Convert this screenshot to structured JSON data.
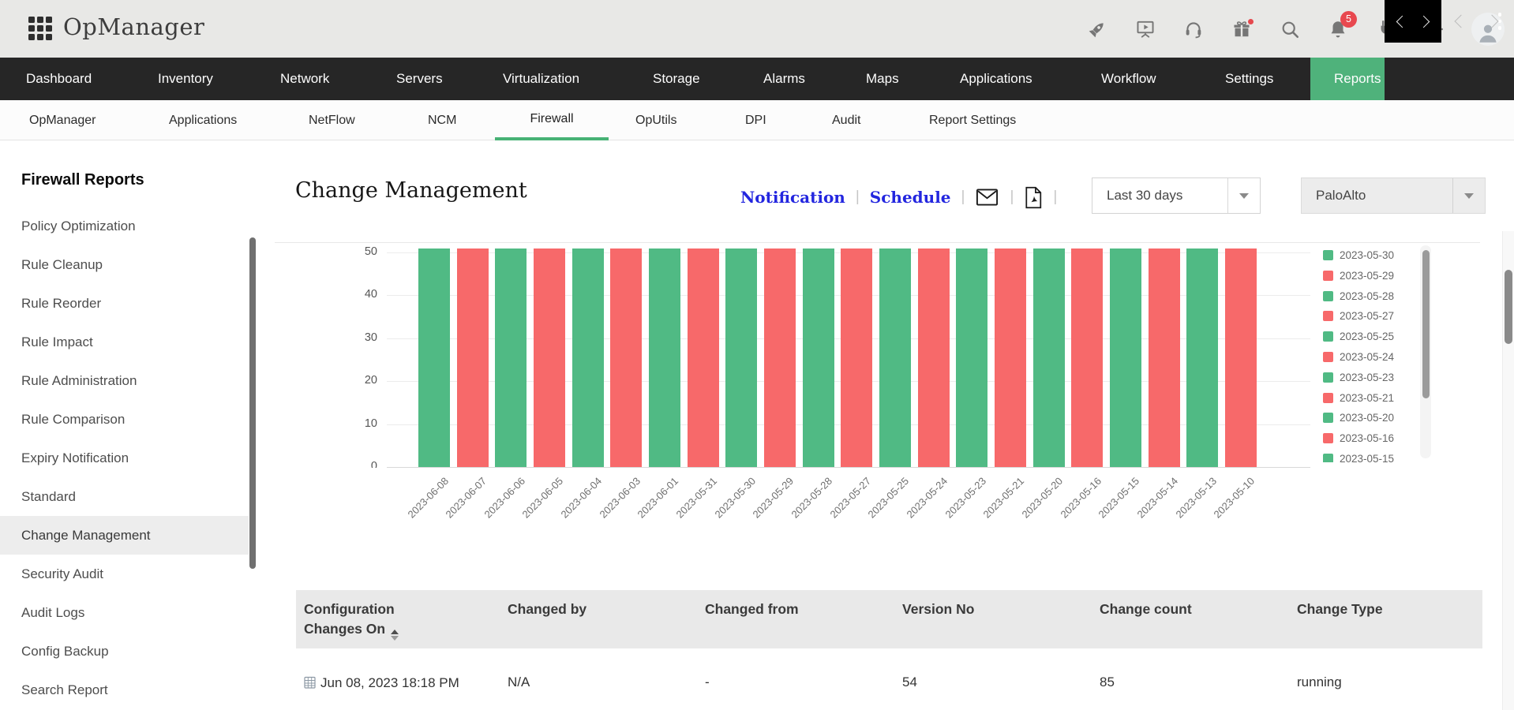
{
  "header": {
    "app_title": "OpManager",
    "notification_count": "5",
    "icons": [
      "apps-grid",
      "rocket",
      "training-video",
      "support-headset",
      "gift",
      "search",
      "notification-bell",
      "plugin",
      "settings-gear",
      "user-avatar"
    ]
  },
  "primary_nav": {
    "items": [
      {
        "label": "Dashboard"
      },
      {
        "label": "Inventory"
      },
      {
        "label": "Network"
      },
      {
        "label": "Servers"
      },
      {
        "label": "Virtualization"
      },
      {
        "label": "Storage"
      },
      {
        "label": "Alarms"
      },
      {
        "label": "Maps"
      },
      {
        "label": "Applications"
      },
      {
        "label": "Workflow"
      },
      {
        "label": "Settings"
      },
      {
        "label": "Reports",
        "active": true
      }
    ]
  },
  "secondary_nav": {
    "items": [
      {
        "label": "OpManager"
      },
      {
        "label": "Applications"
      },
      {
        "label": "NetFlow"
      },
      {
        "label": "NCM"
      },
      {
        "label": "Firewall",
        "active": true
      },
      {
        "label": "OpUtils"
      },
      {
        "label": "DPI"
      },
      {
        "label": "Audit"
      },
      {
        "label": "Report Settings"
      }
    ]
  },
  "sidebar": {
    "title": "Firewall Reports",
    "items": [
      {
        "label": "Policy Optimization"
      },
      {
        "label": "Rule Cleanup"
      },
      {
        "label": "Rule Reorder"
      },
      {
        "label": "Rule Impact"
      },
      {
        "label": "Rule Administration"
      },
      {
        "label": "Rule Comparison"
      },
      {
        "label": "Expiry Notification"
      },
      {
        "label": "Standard"
      },
      {
        "label": "Change Management",
        "active": true
      },
      {
        "label": "Security Audit"
      },
      {
        "label": "Audit Logs"
      },
      {
        "label": "Config Backup"
      },
      {
        "label": "Search Report"
      }
    ]
  },
  "report": {
    "title": "Change Management",
    "notification_label": "Notification",
    "schedule_label": "Schedule",
    "time_range": "Last 30 days",
    "device": "PaloAlto"
  },
  "chart_data": {
    "type": "bar",
    "title": "",
    "xlabel": "",
    "ylabel": "",
    "ylim": [
      0,
      50
    ],
    "yticks": [
      0,
      10,
      20,
      30,
      40,
      50
    ],
    "grid": true,
    "legend_position": "right",
    "clipped_at_top": true,
    "note": "All 22 bars are equal height and extend above the visible y-axis maximum (~50); tops are clipped by the viewport.",
    "palette": {
      "green": "#50ba84",
      "red": "#f7696a"
    },
    "categories": [
      "2023-06-08",
      "2023-06-07",
      "2023-06-06",
      "2023-06-05",
      "2023-06-04",
      "2023-06-03",
      "2023-06-01",
      "2023-05-31",
      "2023-05-30",
      "2023-05-29",
      "2023-05-28",
      "2023-05-27",
      "2023-05-25",
      "2023-05-24",
      "2023-05-23",
      "2023-05-21",
      "2023-05-20",
      "2023-05-16",
      "2023-05-15",
      "2023-05-14",
      "2023-05-13",
      "2023-05-10"
    ],
    "values": [
      50,
      50,
      50,
      50,
      50,
      50,
      50,
      50,
      50,
      50,
      50,
      50,
      50,
      50,
      50,
      50,
      50,
      50,
      50,
      50,
      50,
      50
    ],
    "color_pattern": [
      "green",
      "red",
      "green",
      "red",
      "green",
      "red",
      "green",
      "red",
      "green",
      "red",
      "green",
      "red",
      "green",
      "red",
      "green",
      "red",
      "green",
      "red",
      "green",
      "red",
      "green",
      "red"
    ],
    "legend_entries": [
      {
        "label": "2023-05-30",
        "color": "#50ba84"
      },
      {
        "label": "2023-05-29",
        "color": "#f7696a"
      },
      {
        "label": "2023-05-28",
        "color": "#50ba84"
      },
      {
        "label": "2023-05-27",
        "color": "#f7696a"
      },
      {
        "label": "2023-05-25",
        "color": "#50ba84"
      },
      {
        "label": "2023-05-24",
        "color": "#f7696a"
      },
      {
        "label": "2023-05-23",
        "color": "#50ba84"
      },
      {
        "label": "2023-05-21",
        "color": "#f7696a"
      },
      {
        "label": "2023-05-20",
        "color": "#50ba84"
      },
      {
        "label": "2023-05-16",
        "color": "#f7696a"
      },
      {
        "label": "2023-05-15",
        "color": "#50ba84"
      }
    ]
  },
  "table": {
    "columns": [
      {
        "label": "Configuration Changes On",
        "sort": "sortable"
      },
      {
        "label": "Changed by"
      },
      {
        "label": "Changed from"
      },
      {
        "label": "Version No"
      },
      {
        "label": "Change count"
      },
      {
        "label": "Change Type"
      }
    ],
    "rows": [
      [
        "Jun 08, 2023 18:18 PM",
        "N/A",
        "-",
        "54",
        "85",
        "running"
      ]
    ]
  }
}
